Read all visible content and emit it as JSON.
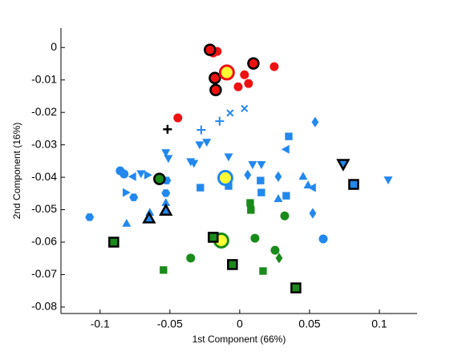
{
  "chart_data": {
    "type": "scatter",
    "xlabel": "1st Component (66%)",
    "ylabel": "2nd Component (16%)",
    "xlim": [
      -0.128,
      0.127
    ],
    "ylim": [
      -0.082,
      0.006
    ],
    "xticks": [
      -0.1,
      -0.05,
      0,
      0.05,
      0.1
    ],
    "yticks": [
      0,
      -0.01,
      -0.02,
      -0.03,
      -0.04,
      -0.05,
      -0.06,
      -0.07,
      -0.08
    ],
    "series": [
      {
        "color": "#ee1111",
        "marker": "circle",
        "x": [
          -0.019,
          -0.0161,
          -0.0011,
          0.0034,
          0.0063,
          0.0247,
          -0.0443
        ],
        "y": [
          -0.0017,
          -0.0012,
          -0.0121,
          -0.0084,
          -0.0111,
          -0.0059,
          -0.0217
        ]
      },
      {
        "color": "#ee1111",
        "marker": "circle",
        "edgecolor": "#000000",
        "x": [
          -0.0213,
          -0.0178,
          -0.0172,
          0.0098
        ],
        "y": [
          -0.0007,
          -0.0094,
          -0.0131,
          -0.0049
        ]
      },
      {
        "color": "#ffff33",
        "marker": "circle",
        "edgecolor": "#ee1111",
        "highlight": true,
        "x": [
          -0.0092
        ],
        "y": [
          -0.0077
        ]
      },
      {
        "color": "#000000",
        "marker": "plus",
        "x": [
          -0.0517
        ],
        "y": [
          -0.0252
        ]
      },
      {
        "color": "#2288ee",
        "marker": "triangle-down",
        "x": [
          -0.0707,
          -0.0529,
          -0.0511,
          -0.0351,
          -0.0328,
          -0.0287,
          -0.0236,
          -0.008,
          0.0092,
          0.0155,
          0.1063
        ],
        "y": [
          -0.0388,
          -0.0323,
          -0.0341,
          -0.0351,
          -0.0356,
          -0.0299,
          -0.0291,
          -0.0336,
          -0.036,
          -0.036,
          -0.0407
        ]
      },
      {
        "color": "#2288ee",
        "marker": "circle",
        "x": [
          -0.0856,
          -0.0828,
          0.0598
        ],
        "y": [
          -0.038,
          -0.039,
          -0.059
        ]
      },
      {
        "color": "#2288ee",
        "marker": "triangle-up",
        "x": [
          -0.081,
          -0.0644,
          0.0276,
          0.0454,
          0.0489,
          -0.0529
        ],
        "y": [
          -0.0543,
          -0.0509,
          -0.0467,
          -0.0398,
          -0.0425,
          -0.0479
        ]
      },
      {
        "color": "#2288ee",
        "marker": "triangle-left",
        "x": [
          -0.0764,
          0.0333,
          0.0523
        ],
        "y": [
          -0.0398,
          -0.0314,
          -0.0432
        ]
      },
      {
        "color": "#2288ee",
        "marker": "triangle-right",
        "x": [
          -0.0816,
          -0.0661
        ],
        "y": [
          -0.0447,
          -0.0393
        ]
      },
      {
        "color": "#2288ee",
        "marker": "diamond",
        "x": [
          0.054,
          0.0057,
          0.0276,
          0.0523,
          0.008
        ],
        "y": [
          -0.023,
          -0.0393,
          -0.0398,
          -0.0511,
          -0.0491
        ]
      },
      {
        "color": "#2288ee",
        "marker": "square",
        "x": [
          0.0351,
          0.0149,
          0.0155,
          0.0333,
          -0.0282,
          -0.008
        ],
        "y": [
          -0.0274,
          -0.041,
          -0.0447,
          -0.0457,
          -0.0432,
          -0.0427
        ]
      },
      {
        "color": "#2288ee",
        "marker": "hexagon",
        "x": [
          -0.1075,
          -0.0759,
          -0.0529,
          -0.0523
        ],
        "y": [
          -0.0523,
          -0.0462,
          -0.0449,
          -0.041
        ]
      },
      {
        "color": "#2288ee",
        "marker": "plus",
        "x": [
          -0.0276,
          -0.0144
        ],
        "y": [
          -0.0254,
          -0.0227
        ]
      },
      {
        "color": "#2288ee",
        "marker": "x",
        "x": [
          -0.0069,
          0.0034
        ],
        "y": [
          -0.0202,
          -0.0188
        ]
      },
      {
        "color": "#ffff33",
        "marker": "circle",
        "edgecolor": "#2288ee",
        "highlight": true,
        "x": [
          -0.0103
        ],
        "y": [
          -0.0402
        ]
      },
      {
        "color": "#2288ee",
        "marker": "triangle-up",
        "edgecolor": "#000000",
        "x": [
          -0.0649,
          -0.0529
        ],
        "y": [
          -0.0528,
          -0.0504
        ]
      },
      {
        "color": "#2288ee",
        "marker": "triangle-down",
        "edgecolor": "#000000",
        "x": [
          0.0741
        ],
        "y": [
          -0.0358
        ]
      },
      {
        "color": "#2288ee",
        "marker": "square",
        "edgecolor": "#000000",
        "x": [
          0.0816
        ],
        "y": [
          -0.0422
        ]
      },
      {
        "color": "#1a8a1a",
        "marker": "circle",
        "x": [
          -0.0351,
          0.0109,
          0.0322,
          0.0253
        ],
        "y": [
          -0.0649,
          -0.0588,
          -0.0519,
          -0.0625
        ]
      },
      {
        "color": "#1a8a1a",
        "marker": "circle",
        "edgecolor": "#000000",
        "x": [
          -0.0575
        ],
        "y": [
          -0.0405
        ]
      },
      {
        "color": "#ffff33",
        "marker": "circle",
        "edgecolor": "#1a8a1a",
        "highlight": true,
        "x": [
          -0.0132
        ],
        "y": [
          -0.0595
        ]
      },
      {
        "color": "#1a8a1a",
        "marker": "square",
        "x": [
          -0.0546,
          0.0167,
          0.0075,
          0.008
        ],
        "y": [
          -0.0686,
          -0.0689,
          -0.0479,
          -0.0501
        ]
      },
      {
        "color": "#1a8a1a",
        "marker": "square",
        "edgecolor": "#000000",
        "x": [
          -0.0902,
          -0.019,
          -0.0052,
          0.0402
        ],
        "y": [
          -0.06,
          -0.0585,
          -0.0669,
          -0.0741
        ]
      },
      {
        "color": "#1a8a1a",
        "marker": "diamond",
        "x": [
          0.0282
        ],
        "y": [
          -0.0649
        ]
      }
    ]
  }
}
